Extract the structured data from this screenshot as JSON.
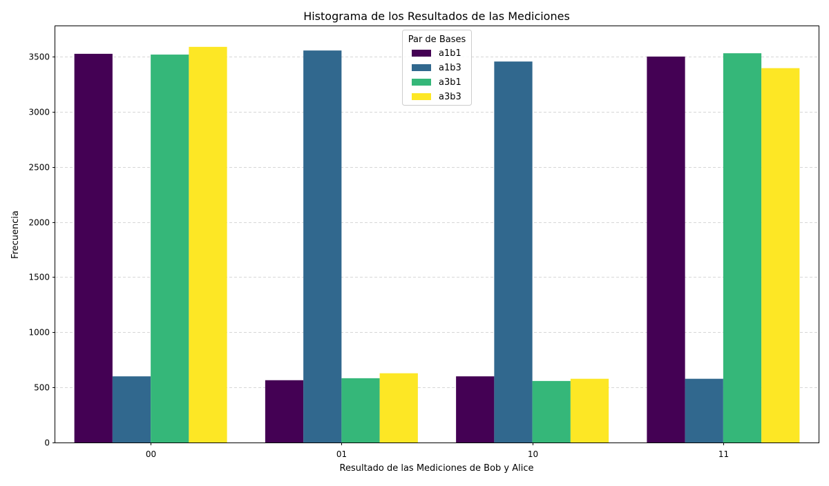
{
  "chart_data": {
    "type": "bar",
    "title": "Histograma de los Resultados de las Mediciones",
    "xlabel": "Resultado de las Mediciones de Bob y Alice",
    "ylabel": "Frecuencia",
    "categories": [
      "00",
      "01",
      "10",
      "11"
    ],
    "series": [
      {
        "name": "a1b1",
        "color": "#440154",
        "values": [
          3525,
          565,
          600,
          3500
        ]
      },
      {
        "name": "a1b3",
        "color": "#31688e",
        "values": [
          600,
          3555,
          3455,
          578
        ]
      },
      {
        "name": "a3b1",
        "color": "#35b779",
        "values": [
          3518,
          583,
          558,
          3530
        ]
      },
      {
        "name": "a3b3",
        "color": "#fde725",
        "values": [
          3588,
          628,
          578,
          3395
        ]
      }
    ],
    "ylim": [
      0,
      3775
    ],
    "yticks": [
      0,
      500,
      1000,
      1500,
      2000,
      2500,
      3000,
      3500
    ],
    "grid": "y-dashed",
    "legend": {
      "title": "Par de Bases",
      "placement": "top-center"
    }
  }
}
